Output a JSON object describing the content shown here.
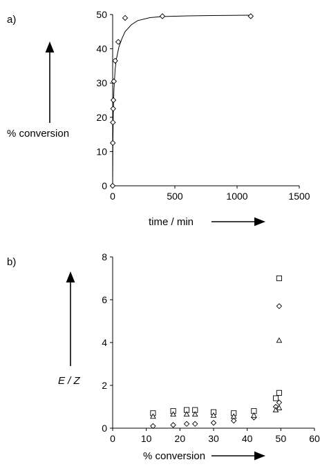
{
  "chart_data": [
    {
      "type": "scatter",
      "panel_label": "a)",
      "xlabel": "time / min",
      "ylabel": "% conversion",
      "xlim": [
        0,
        1500
      ],
      "ylim": [
        0,
        50
      ],
      "xticks": [
        0,
        500,
        1000,
        1500
      ],
      "yticks": [
        0,
        10,
        20,
        30,
        40,
        50
      ],
      "grid": false,
      "series": [
        {
          "marker": "diamond",
          "x": [
            0,
            1,
            2,
            4,
            6,
            10,
            20,
            45,
            100,
            400,
            1110
          ],
          "y": [
            0,
            12.5,
            18.5,
            22.5,
            25,
            30.5,
            36.5,
            42,
            49,
            49.5,
            49.5
          ]
        }
      ],
      "fit_curve": {
        "x": [
          0,
          2,
          5,
          10,
          20,
          30,
          50,
          75,
          100,
          150,
          200,
          300,
          400,
          600,
          800,
          1110
        ],
        "y": [
          0,
          12.5,
          21,
          28,
          34,
          37,
          40.5,
          43,
          45,
          47,
          48.2,
          49.1,
          49.4,
          49.6,
          49.7,
          49.8
        ]
      }
    },
    {
      "type": "scatter",
      "panel_label": "b)",
      "xlabel": "% conversion",
      "ylabel": "E / Z",
      "xlim": [
        0,
        60
      ],
      "ylim": [
        0,
        8
      ],
      "xticks": [
        0,
        10,
        20,
        30,
        40,
        50,
        60
      ],
      "yticks": [
        0,
        2,
        4,
        6,
        8
      ],
      "grid": false,
      "series": [
        {
          "marker": "square",
          "x": [
            12,
            18,
            22,
            24.5,
            30,
            36,
            42,
            48.5,
            49.5,
            49.5
          ],
          "y": [
            0.7,
            0.8,
            0.85,
            0.85,
            0.75,
            0.7,
            0.8,
            1.4,
            1.65,
            7.0
          ]
        },
        {
          "marker": "diamond",
          "x": [
            12,
            18,
            22,
            24.5,
            30,
            36,
            42,
            48.5,
            49.5,
            49.5
          ],
          "y": [
            0.1,
            0.15,
            0.2,
            0.2,
            0.25,
            0.35,
            0.5,
            1.0,
            1.2,
            5.7
          ]
        },
        {
          "marker": "triangle",
          "x": [
            12,
            18,
            22,
            24.5,
            30,
            36,
            42,
            48.5,
            49.5,
            49.5
          ],
          "y": [
            0.55,
            0.65,
            0.65,
            0.65,
            0.6,
            0.55,
            0.6,
            0.85,
            0.95,
            4.1
          ]
        }
      ]
    }
  ]
}
